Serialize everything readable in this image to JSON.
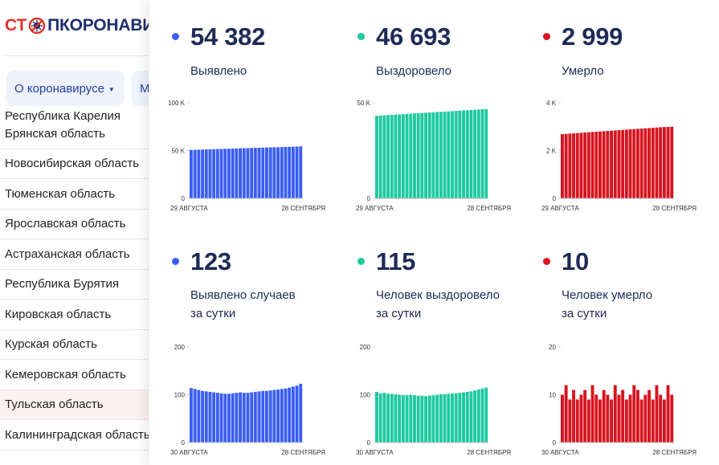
{
  "site": {
    "logo_left": "СТ",
    "logo_right": "ПКОРОНАВИ",
    "nav_item": "О коронавирусе",
    "nav_item2": "М",
    "region_partial": "Республика Карелия",
    "regions": [
      {
        "name": "Брянская область"
      },
      {
        "name": "Новосибирская область"
      },
      {
        "name": "Тюменская область"
      },
      {
        "name": "Ярославская область"
      },
      {
        "name": "Астраханская область"
      },
      {
        "name": "Республика Бурятия"
      },
      {
        "name": "Кировская область"
      },
      {
        "name": "Курская область"
      },
      {
        "name": "Кемеровская область"
      },
      {
        "name": "Тульская область"
      },
      {
        "name": "Калининградская область"
      }
    ]
  },
  "colors": {
    "confirmed": "#3b5ef5",
    "recovered": "#1ec9a0",
    "deaths": "#d7141f",
    "text": "#1e2a56"
  },
  "stats": {
    "confirmed_total": {
      "value": "54 382",
      "label": "Выявлено"
    },
    "recovered_total": {
      "value": "46 693",
      "label": "Выздоровело"
    },
    "deaths_total": {
      "value": "2 999",
      "label": "Умерло"
    },
    "confirmed_daily": {
      "value": "123",
      "label1": "Выявлено случаев",
      "label2": "за сутки"
    },
    "recovered_daily": {
      "value": "115",
      "label1": "Человек выздоровело",
      "label2": "за сутки"
    },
    "deaths_daily": {
      "value": "10",
      "label1": "Человек умерло",
      "label2": "за сутки"
    }
  },
  "chart_data": [
    {
      "id": "confirmed_total",
      "type": "bar",
      "color": "#3b5ef5",
      "ylim": [
        0,
        100000
      ],
      "yticks": [
        0,
        50000,
        100000
      ],
      "ytick_labels": [
        "0",
        "50 K",
        "100 K"
      ],
      "x_start": "29 АВГУСТА",
      "x_end": "28 СЕНТЯБРЯ",
      "values": [
        50700,
        50826,
        50952,
        51078,
        51204,
        51330,
        51456,
        51582,
        51708,
        51834,
        51960,
        52086,
        52212,
        52338,
        52464,
        52590,
        52716,
        52842,
        52968,
        53094,
        53220,
        53346,
        53472,
        53598,
        53724,
        53850,
        53976,
        54102,
        54228,
        54382
      ]
    },
    {
      "id": "recovered_total",
      "type": "bar",
      "color": "#1ec9a0",
      "ylim": [
        0,
        50000
      ],
      "yticks": [
        0,
        50000
      ],
      "ytick_labels": [
        "0",
        "50 K"
      ],
      "x_start": "29 АВГУСТА",
      "x_end": "28 СЕНТЯБРЯ",
      "values": [
        43200,
        43322,
        43444,
        43566,
        43688,
        43810,
        43932,
        44054,
        44176,
        44298,
        44420,
        44542,
        44664,
        44786,
        44908,
        45030,
        45152,
        45274,
        45396,
        45518,
        45640,
        45762,
        45884,
        46006,
        46128,
        46250,
        46372,
        46494,
        46616,
        46693
      ]
    },
    {
      "id": "deaths_total",
      "type": "bar",
      "color": "#d7141f",
      "ylim": [
        0,
        4000
      ],
      "yticks": [
        0,
        2000,
        4000
      ],
      "ytick_labels": [
        "0",
        "2 K",
        "4 K"
      ],
      "x_start": "29 АВГУСТА",
      "x_end": "28 СЕНТЯБРЯ",
      "values": [
        2690,
        2701,
        2712,
        2723,
        2734,
        2745,
        2756,
        2767,
        2778,
        2789,
        2800,
        2811,
        2822,
        2833,
        2844,
        2855,
        2866,
        2877,
        2888,
        2899,
        2910,
        2921,
        2932,
        2943,
        2954,
        2965,
        2976,
        2987,
        2990,
        2999
      ]
    },
    {
      "id": "confirmed_daily",
      "type": "bar",
      "color": "#3b5ef5",
      "ylim": [
        0,
        200
      ],
      "yticks": [
        0,
        100,
        200
      ],
      "ytick_labels": [
        "0",
        "100",
        "200"
      ],
      "x_start": "30 АВГУСТА",
      "x_end": "28 СЕНТЯБРЯ",
      "values": [
        114,
        112,
        110,
        108,
        107,
        106,
        105,
        104,
        103,
        102,
        102,
        103,
        104,
        105,
        104,
        104,
        105,
        106,
        107,
        108,
        108,
        109,
        110,
        111,
        112,
        113,
        115,
        117,
        119,
        123
      ]
    },
    {
      "id": "recovered_daily",
      "type": "bar",
      "color": "#1ec9a0",
      "ylim": [
        0,
        200
      ],
      "yticks": [
        0,
        100,
        200
      ],
      "ytick_labels": [
        "0",
        "100",
        "200"
      ],
      "x_start": "30 АВГУСТА",
      "x_end": "28 СЕНТЯБРЯ",
      "values": [
        106,
        103,
        104,
        102,
        102,
        101,
        100,
        99,
        99,
        100,
        99,
        98,
        98,
        97,
        98,
        99,
        100,
        101,
        101,
        102,
        103,
        103,
        104,
        105,
        106,
        107,
        109,
        111,
        113,
        115
      ]
    },
    {
      "id": "deaths_daily",
      "type": "bar",
      "color": "#d7141f",
      "ylim": [
        0,
        20
      ],
      "yticks": [
        0,
        10,
        20
      ],
      "ytick_labels": [
        "0",
        "10",
        "20"
      ],
      "x_start": "30 АВГУСТА",
      "x_end": "28 СЕНТЯБРЯ",
      "values": [
        10,
        12,
        9,
        11,
        9,
        10,
        11,
        9,
        12,
        10,
        9,
        11,
        10,
        9,
        12,
        10,
        11,
        9,
        10,
        12,
        11,
        9,
        10,
        11,
        9,
        12,
        10,
        9,
        12,
        10
      ]
    }
  ]
}
